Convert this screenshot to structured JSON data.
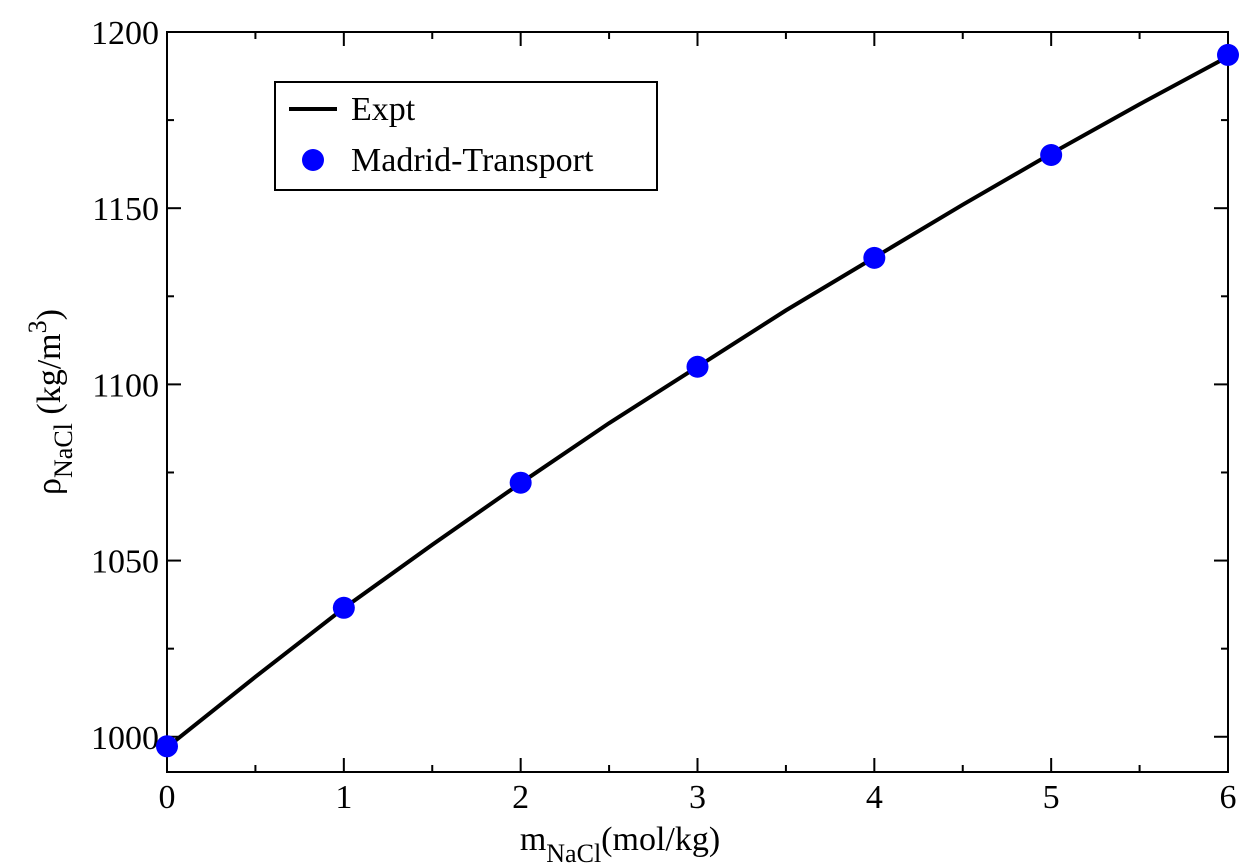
{
  "chart_data": {
    "type": "line",
    "xlabel": {
      "main": "m",
      "sub": "NaCl",
      "rest": "(mol/kg)"
    },
    "ylabel": {
      "main": "ρ",
      "sub": "NaCl",
      "rest": " (kg/m",
      "sup": "3",
      "end": ")"
    },
    "xlim": [
      0,
      6
    ],
    "xticks": [
      0,
      1,
      2,
      3,
      4,
      5,
      6
    ],
    "xminorticks": [
      0.5,
      1.5,
      2.5,
      3.5,
      4.5,
      5.5
    ],
    "ylim": [
      990,
      1200
    ],
    "yticks": [
      1000,
      1050,
      1100,
      1150,
      1200
    ],
    "yminorticks": [
      1025,
      1075,
      1125,
      1175
    ],
    "grid": false,
    "legend": "upper left",
    "series": [
      {
        "name": "Expt",
        "type": "line",
        "color": "#000000",
        "x": [
          0,
          0.5,
          1,
          1.5,
          2,
          2.5,
          3,
          3.5,
          4,
          4.5,
          5,
          5.5,
          6
        ],
        "values": [
          997,
          1017,
          1036.5,
          1054.5,
          1072,
          1089,
          1105,
          1121,
          1136,
          1151,
          1165.5,
          1179.5,
          1193
        ]
      },
      {
        "name": "Madrid-Transport",
        "type": "scatter",
        "color": "#0000ff",
        "x": [
          0,
          1,
          2,
          3,
          4,
          5,
          6
        ],
        "values": [
          997.3,
          1036.6,
          1072.1,
          1105,
          1135.9,
          1165.1,
          1193.5
        ]
      }
    ]
  }
}
